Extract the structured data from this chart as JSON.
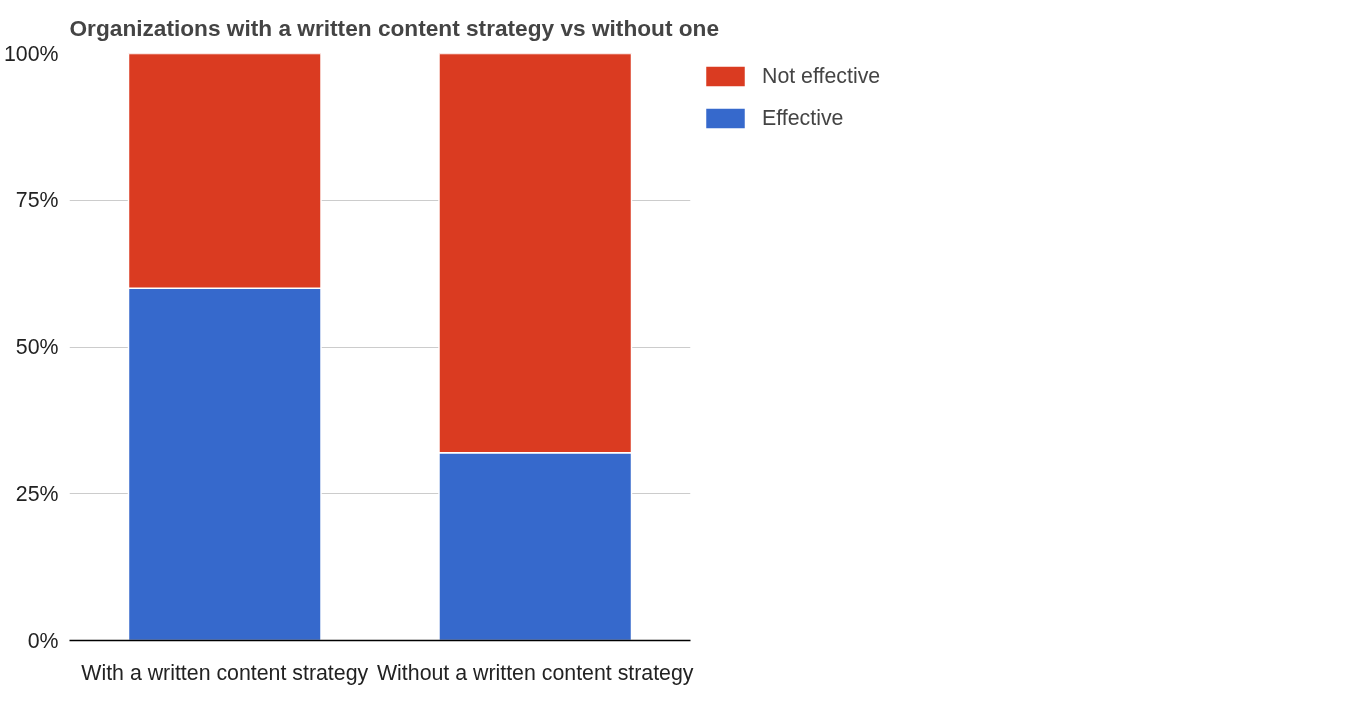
{
  "chart_data": {
    "type": "bar",
    "title": "Organizations with a written content strategy vs without one",
    "categories": [
      "With a written content strategy",
      "Without a written content strategy"
    ],
    "stacked": true,
    "series": [
      {
        "name": "Effective",
        "color": "#3669cc",
        "values": [
          60,
          32
        ]
      },
      {
        "name": "Not effective",
        "color": "#da3b21",
        "values": [
          40,
          68
        ]
      }
    ],
    "ylim": [
      0,
      100
    ],
    "yticks": [
      {
        "value": 0,
        "label": "0%"
      },
      {
        "value": 25,
        "label": "25%"
      },
      {
        "value": 50,
        "label": "50%"
      },
      {
        "value": 75,
        "label": "75%"
      },
      {
        "value": 100,
        "label": "100%"
      }
    ],
    "grid": "y",
    "legend": "top right"
  }
}
